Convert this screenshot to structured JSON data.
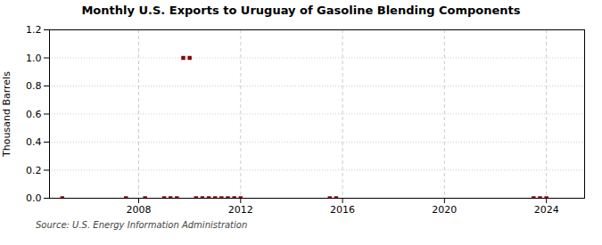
{
  "chart_data": {
    "type": "scatter",
    "title": "Monthly U.S. Exports to Uruguay of Gasoline Blending Components",
    "y_label": "Thousand Barrels",
    "source": "Source: U.S. Energy Information Administration",
    "x": [
      2005.0,
      2007.5,
      2008.25,
      2009.0,
      2009.25,
      2009.5,
      2009.75,
      2010.0,
      2010.25,
      2010.5,
      2010.75,
      2011.0,
      2011.25,
      2011.5,
      2011.75,
      2012.0,
      2015.5,
      2015.75,
      2023.5,
      2023.75,
      2024.0
    ],
    "values": [
      0.0,
      0.0,
      0.0,
      0.0,
      0.0,
      0.0,
      1.0,
      1.0,
      0.0,
      0.0,
      0.0,
      0.0,
      0.0,
      0.0,
      0.0,
      0.0,
      0.0,
      0.0,
      0.0,
      0.0,
      0.0
    ],
    "color": "#8b0000",
    "marker": "square",
    "xlim": [
      2004.5,
      2025.5
    ],
    "xticks": [
      2008,
      2012,
      2016,
      2020,
      2024
    ],
    "ylim": [
      0.0,
      1.2
    ],
    "yticks": [
      {
        "value": 0.0,
        "label": "0.0"
      },
      0.2,
      0.4,
      0.6,
      0.8,
      {
        "value": 1.0,
        "label": "1.0"
      },
      1.2
    ],
    "grid": true
  }
}
